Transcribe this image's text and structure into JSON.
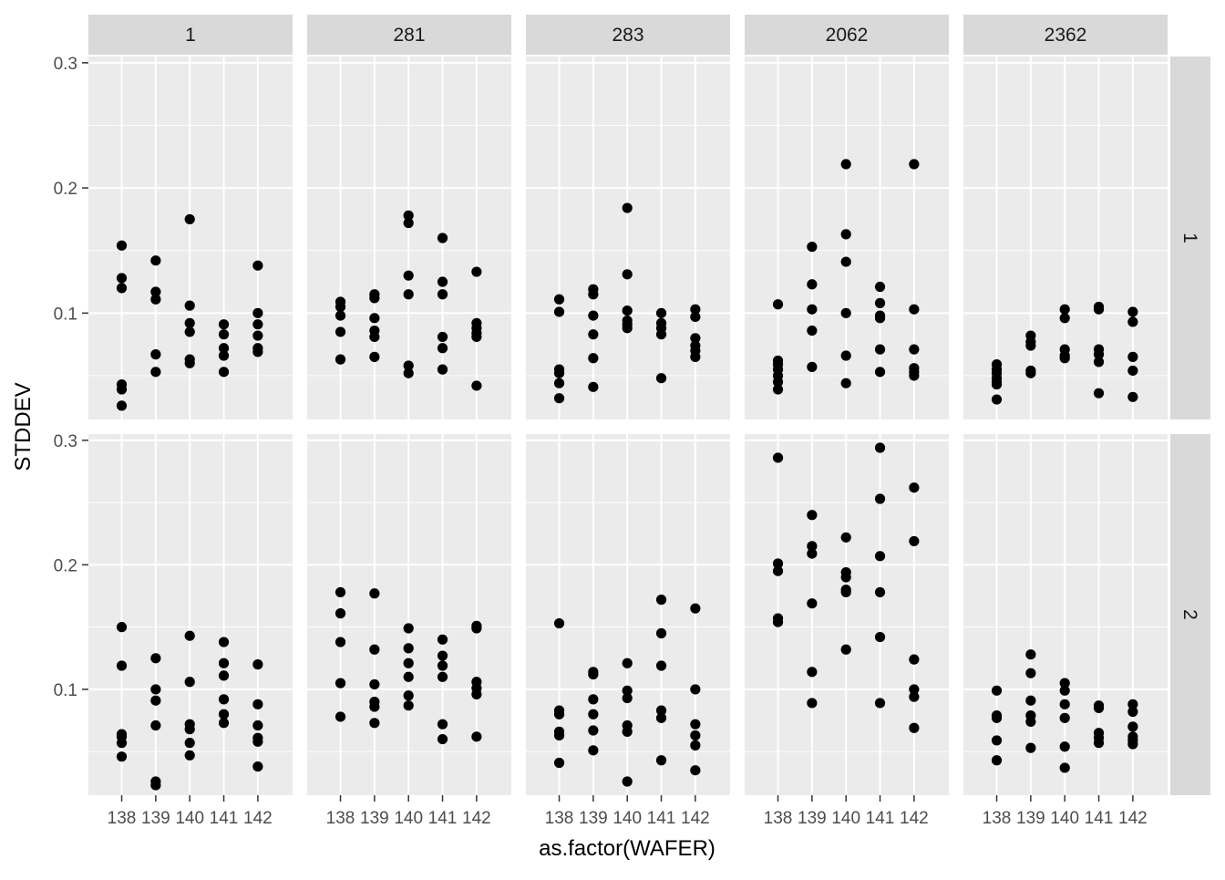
{
  "chart_data": {
    "type": "scatter",
    "xlabel": "as.factor(WAFER)",
    "ylabel": "STDDEV",
    "x_categories": [
      "138",
      "139",
      "140",
      "141",
      "142"
    ],
    "ylim": [
      0.015,
      0.305
    ],
    "y_ticks": [
      0.1,
      0.2,
      0.3
    ],
    "y_tick_labels": [
      "0.1",
      "0.2",
      "0.3"
    ],
    "grid": true,
    "column_facets": [
      "1",
      "281",
      "283",
      "2062",
      "2362"
    ],
    "row_facets": [
      "1",
      "2"
    ],
    "panels": [
      {
        "row": "1",
        "col": "1",
        "points": {
          "138": [
            0.154,
            0.128,
            0.12,
            0.043,
            0.039,
            0.026
          ],
          "139": [
            0.142,
            0.117,
            0.111,
            0.067,
            0.053
          ],
          "140": [
            0.175,
            0.106,
            0.092,
            0.085,
            0.063,
            0.06
          ],
          "141": [
            0.091,
            0.083,
            0.072,
            0.066,
            0.053
          ],
          "142": [
            0.138,
            0.1,
            0.091,
            0.082,
            0.072,
            0.069
          ]
        }
      },
      {
        "row": "1",
        "col": "281",
        "points": {
          "138": [
            0.109,
            0.105,
            0.098,
            0.085,
            0.063
          ],
          "139": [
            0.115,
            0.112,
            0.096,
            0.086,
            0.081,
            0.065
          ],
          "140": [
            0.178,
            0.172,
            0.13,
            0.115,
            0.058,
            0.052
          ],
          "141": [
            0.16,
            0.125,
            0.115,
            0.081,
            0.072,
            0.055
          ],
          "142": [
            0.133,
            0.092,
            0.088,
            0.084,
            0.081,
            0.042
          ]
        }
      },
      {
        "row": "1",
        "col": "283",
        "points": {
          "138": [
            0.111,
            0.101,
            0.055,
            0.052,
            0.044,
            0.032
          ],
          "139": [
            0.119,
            0.115,
            0.098,
            0.083,
            0.064,
            0.041
          ],
          "140": [
            0.184,
            0.131,
            0.102,
            0.094,
            0.091,
            0.088
          ],
          "141": [
            0.1,
            0.092,
            0.088,
            0.083,
            0.048
          ],
          "142": [
            0.103,
            0.097,
            0.08,
            0.074,
            0.07,
            0.065
          ]
        }
      },
      {
        "row": "1",
        "col": "2062",
        "points": {
          "138": [
            0.107,
            0.062,
            0.059,
            0.055,
            0.05,
            0.045,
            0.039
          ],
          "139": [
            0.153,
            0.123,
            0.103,
            0.086,
            0.057
          ],
          "140": [
            0.219,
            0.163,
            0.141,
            0.1,
            0.066,
            0.044
          ],
          "141": [
            0.121,
            0.108,
            0.098,
            0.096,
            0.071,
            0.053
          ],
          "142": [
            0.219,
            0.103,
            0.071,
            0.056,
            0.053,
            0.05
          ]
        }
      },
      {
        "row": "1",
        "col": "2362",
        "points": {
          "138": [
            0.059,
            0.055,
            0.052,
            0.048,
            0.045,
            0.043,
            0.031
          ],
          "139": [
            0.082,
            0.077,
            0.074,
            0.054,
            0.052
          ],
          "140": [
            0.103,
            0.096,
            0.071,
            0.066,
            0.064
          ],
          "141": [
            0.105,
            0.103,
            0.071,
            0.067,
            0.061,
            0.036
          ],
          "142": [
            0.101,
            0.093,
            0.065,
            0.054,
            0.033
          ]
        }
      },
      {
        "row": "2",
        "col": "1",
        "points": {
          "138": [
            0.15,
            0.119,
            0.064,
            0.062,
            0.057,
            0.046
          ],
          "139": [
            0.125,
            0.1,
            0.091,
            0.071,
            0.026,
            0.023
          ],
          "140": [
            0.143,
            0.106,
            0.072,
            0.068,
            0.057,
            0.047
          ],
          "141": [
            0.138,
            0.121,
            0.111,
            0.092,
            0.08,
            0.073
          ],
          "142": [
            0.12,
            0.088,
            0.071,
            0.061,
            0.058,
            0.038
          ]
        }
      },
      {
        "row": "2",
        "col": "281",
        "points": {
          "138": [
            0.178,
            0.161,
            0.138,
            0.105,
            0.078
          ],
          "139": [
            0.177,
            0.132,
            0.104,
            0.09,
            0.086,
            0.073
          ],
          "140": [
            0.149,
            0.133,
            0.121,
            0.11,
            0.095,
            0.087
          ],
          "141": [
            0.14,
            0.127,
            0.119,
            0.11,
            0.072,
            0.06
          ],
          "142": [
            0.151,
            0.149,
            0.106,
            0.101,
            0.096,
            0.062
          ]
        }
      },
      {
        "row": "2",
        "col": "283",
        "points": {
          "138": [
            0.153,
            0.083,
            0.08,
            0.066,
            0.063,
            0.041
          ],
          "139": [
            0.114,
            0.112,
            0.092,
            0.08,
            0.067,
            0.051
          ],
          "140": [
            0.121,
            0.099,
            0.093,
            0.071,
            0.066,
            0.026
          ],
          "141": [
            0.172,
            0.145,
            0.119,
            0.083,
            0.077,
            0.043
          ],
          "142": [
            0.165,
            0.1,
            0.072,
            0.063,
            0.055,
            0.035
          ]
        }
      },
      {
        "row": "2",
        "col": "2062",
        "points": {
          "138": [
            0.286,
            0.201,
            0.195,
            0.157,
            0.154
          ],
          "139": [
            0.24,
            0.215,
            0.209,
            0.169,
            0.114,
            0.089
          ],
          "140": [
            0.222,
            0.194,
            0.19,
            0.18,
            0.178,
            0.132
          ],
          "141": [
            0.294,
            0.253,
            0.207,
            0.178,
            0.142,
            0.089
          ],
          "142": [
            0.262,
            0.219,
            0.124,
            0.1,
            0.094,
            0.069
          ]
        }
      },
      {
        "row": "2",
        "col": "2362",
        "points": {
          "138": [
            0.099,
            0.079,
            0.077,
            0.059,
            0.043
          ],
          "139": [
            0.128,
            0.113,
            0.091,
            0.079,
            0.074,
            0.053
          ],
          "140": [
            0.105,
            0.099,
            0.088,
            0.077,
            0.054,
            0.037
          ],
          "141": [
            0.087,
            0.085,
            0.065,
            0.061,
            0.057
          ],
          "142": [
            0.088,
            0.082,
            0.07,
            0.062,
            0.059,
            0.056
          ]
        }
      }
    ]
  }
}
